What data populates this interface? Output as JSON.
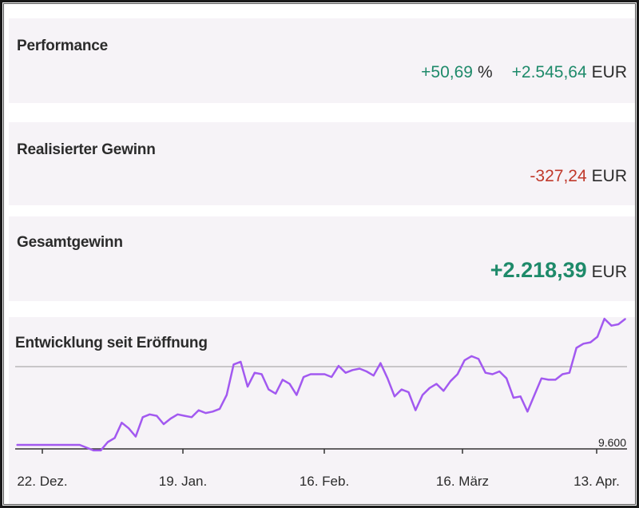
{
  "performance": {
    "title": "Performance",
    "percent_value": "+50,69",
    "percent_unit": "%",
    "amount_value": "+2.545,64",
    "amount_unit": "EUR"
  },
  "realized": {
    "title": "Realisierter Gewinn",
    "amount_value": "-327,24",
    "amount_unit": "EUR"
  },
  "total": {
    "title": "Gesamtgewinn",
    "amount_value": "+2.218,39",
    "amount_unit": "EUR"
  },
  "colors": {
    "positive": "#1e8a6a",
    "negative": "#c0392b",
    "line": "#a259f0",
    "card_bg": "#f6f3f7"
  },
  "chart_data": {
    "type": "line",
    "title": "Entwicklung seit Eröffnung",
    "x_tick_labels": [
      "22. Dez.",
      "19. Jan.",
      "16. Feb.",
      "16. März",
      "13. Apr."
    ],
    "y_tick_labels": [
      "9.600"
    ],
    "ylim": [
      9600,
      11700
    ],
    "grid": false,
    "series": [
      {
        "values": [
          9600,
          9600,
          9600,
          9600,
          9600,
          9600,
          9600,
          9600,
          9600,
          9600,
          9580,
          9560,
          9560,
          9620,
          9650,
          9760,
          9720,
          9660,
          9800,
          9820,
          9810,
          9750,
          9790,
          9820,
          9810,
          9800,
          9850,
          9830,
          9840,
          9860,
          9960,
          10180,
          10200,
          10020,
          10120,
          10110,
          10000,
          9970,
          10070,
          10040,
          9960,
          10090,
          10110,
          10110,
          10110,
          10090,
          10170,
          10120,
          10140,
          10150,
          10130,
          10100,
          10190,
          10080,
          9950,
          10000,
          9980,
          9850,
          9960,
          10010,
          10040,
          9990,
          10060,
          10110,
          10210,
          10240,
          10220,
          10120,
          10110,
          10130,
          10080,
          9940,
          9950,
          9840,
          9960,
          10080,
          10070,
          10070,
          10110,
          10120,
          10300,
          10330,
          10340,
          10380,
          10510,
          10460,
          10470,
          10510
        ]
      }
    ]
  }
}
